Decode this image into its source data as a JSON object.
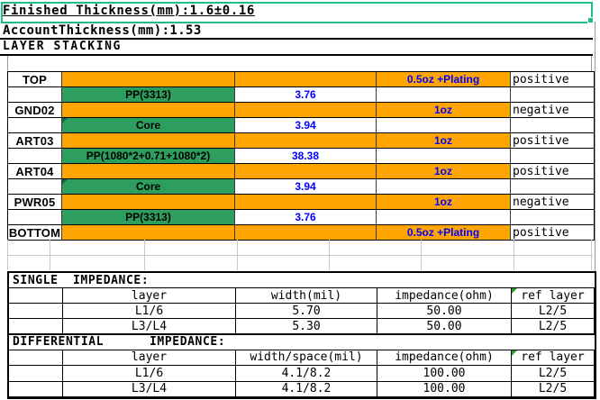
{
  "colors": {
    "orange": "#FFA502",
    "green": "#2E9E5E",
    "blue": "#0000FF",
    "selection": "#1FBF83"
  },
  "header": {
    "finished_thickness": "Finished Thickness(mm):1.6±0.16",
    "account_thickness": "AccountThickness(mm):1.53",
    "section_title": "LAYER STACKING"
  },
  "stackup": {
    "rows": [
      {
        "type": "metal",
        "name": "TOP",
        "copper": "0.5oz +Plating",
        "polarity": "positive"
      },
      {
        "type": "dielectric",
        "material": "PP(3313)",
        "thickness": "3.76",
        "marker": false
      },
      {
        "type": "metal",
        "name": "GND02",
        "copper": "1oz",
        "polarity": "negative"
      },
      {
        "type": "dielectric",
        "material": "Core",
        "thickness": "3.94",
        "marker": true
      },
      {
        "type": "metal",
        "name": "ART03",
        "copper": "1oz",
        "polarity": "positive"
      },
      {
        "type": "dielectric",
        "material": "PP(1080*2+0.71+1080*2)",
        "thickness": "38.38",
        "marker": false
      },
      {
        "type": "metal",
        "name": "ART04",
        "copper": "1oz",
        "polarity": "positive"
      },
      {
        "type": "dielectric",
        "material": "Core",
        "thickness": "3.94",
        "marker": true
      },
      {
        "type": "metal",
        "name": "PWR05",
        "copper": "1oz",
        "polarity": "negative"
      },
      {
        "type": "dielectric",
        "material": "PP(3313)",
        "thickness": "3.76",
        "marker": false
      },
      {
        "type": "metal",
        "name": "BOTTOM",
        "copper": "0.5oz +Plating",
        "polarity": "positive"
      }
    ]
  },
  "single_impedance": {
    "label1": "SINGLE",
    "label2": "IMPEDANCE:",
    "headers": [
      "layer",
      "width(mil)",
      "impedance(ohm)",
      "ref layer"
    ],
    "rows": [
      [
        "L1/6",
        "5.70",
        "50.00",
        "L2/5"
      ],
      [
        "L3/L4",
        "5.30",
        "50.00",
        "L2/5"
      ]
    ]
  },
  "differential_impedance": {
    "label1": "DIFFERENTIAL",
    "label2": "IMPEDANCE:",
    "headers": [
      "layer",
      "width/space(mil)",
      "impedance(ohm)",
      "ref layer"
    ],
    "rows": [
      [
        "L1/6",
        "4.1/8.2",
        "100.00",
        "L2/5"
      ],
      [
        "L3/L4",
        "4.1/8.2",
        "100.00",
        "L2/5"
      ]
    ]
  }
}
